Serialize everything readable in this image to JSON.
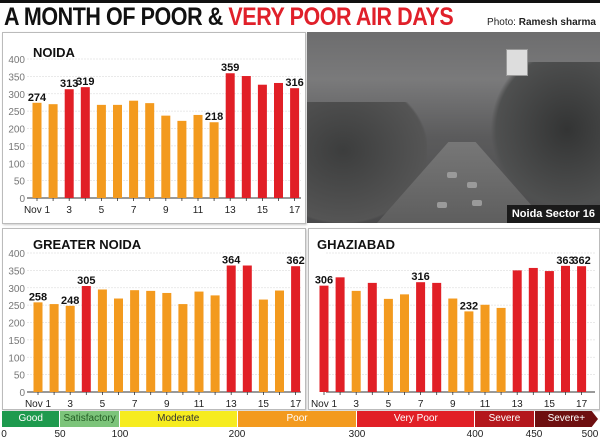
{
  "header": {
    "title_part1": "A MONTH OF POOR & ",
    "title_part2": "VERY POOR AIR DAYS",
    "credit_label": "Photo:",
    "credit_name": "Ramesh sharma"
  },
  "photo": {
    "caption": "Noida Sector 16"
  },
  "colors": {
    "poor": "#f39a1e",
    "very_poor": "#e11f26",
    "title_red": "#e0202a"
  },
  "chart_data": [
    {
      "type": "bar",
      "title": "NOIDA",
      "categories": [
        "Nov 1",
        "Nov 2",
        "Nov 3",
        "Nov 4",
        "Nov 5",
        "Nov 6",
        "Nov 7",
        "Nov 8",
        "Nov 9",
        "Nov 10",
        "Nov 11",
        "Nov 12",
        "Nov 13",
        "Nov 14",
        "Nov 15",
        "Nov 16",
        "Nov 17"
      ],
      "x_tick_labels": [
        "Nov 1",
        "3",
        "5",
        "7",
        "9",
        "11",
        "13",
        "15",
        "17"
      ],
      "values": [
        274,
        270,
        313,
        319,
        268,
        268,
        280,
        273,
        237,
        222,
        239,
        218,
        359,
        351,
        326,
        331,
        316
      ],
      "data_labels": {
        "0": "274",
        "2": "313",
        "3": "319",
        "11": "218",
        "12": "359",
        "16": "316"
      },
      "y_ticks": [
        "0",
        "50",
        "100",
        "150",
        "200",
        "250",
        "300",
        "350",
        "400"
      ],
      "ylim": [
        0,
        400
      ],
      "grid": true
    },
    {
      "type": "bar",
      "title": "GREATER NOIDA",
      "categories": [
        "Nov 1",
        "Nov 2",
        "Nov 3",
        "Nov 4",
        "Nov 5",
        "Nov 6",
        "Nov 7",
        "Nov 8",
        "Nov 9",
        "Nov 10",
        "Nov 11",
        "Nov 12",
        "Nov 13",
        "Nov 14",
        "Nov 15",
        "Nov 16",
        "Nov 17"
      ],
      "x_tick_labels": [
        "Nov 1",
        "3",
        "5",
        "7",
        "9",
        "11",
        "13",
        "15",
        "17"
      ],
      "values": [
        258,
        253,
        248,
        305,
        295,
        269,
        293,
        291,
        285,
        253,
        289,
        278,
        364,
        364,
        266,
        292,
        362
      ],
      "data_labels": {
        "0": "258",
        "2": "248",
        "3": "305",
        "12": "364",
        "16": "362"
      },
      "y_ticks": [
        "0",
        "50",
        "100",
        "150",
        "200",
        "250",
        "300",
        "350",
        "400"
      ],
      "ylim": [
        0,
        400
      ],
      "grid": true
    },
    {
      "type": "bar",
      "title": "GHAZIABAD",
      "categories": [
        "Nov 1",
        "Nov 2",
        "Nov 3",
        "Nov 4",
        "Nov 5",
        "Nov 6",
        "Nov 7",
        "Nov 8",
        "Nov 9",
        "Nov 10",
        "Nov 11",
        "Nov 12",
        "Nov 13",
        "Nov 14",
        "Nov 15",
        "Nov 16",
        "Nov 17"
      ],
      "x_tick_labels": [
        "Nov 1",
        "3",
        "5",
        "7",
        "9",
        "11",
        "13",
        "15",
        "17"
      ],
      "values": [
        306,
        330,
        291,
        314,
        268,
        281,
        316,
        314,
        269,
        232,
        251,
        242,
        350,
        357,
        348,
        363,
        362
      ],
      "data_labels": {
        "0": "306",
        "6": "316",
        "9": "232",
        "15": "363",
        "16": "362"
      },
      "y_ticks": [],
      "ylim": [
        0,
        400
      ],
      "grid": true
    }
  ],
  "aqi_scale": {
    "categories": [
      {
        "label": "Good",
        "color": "#1e9a4e"
      },
      {
        "label": "Satisfactory",
        "color": "#7cc47a"
      },
      {
        "label": "Moderate",
        "color": "#f6ec1f"
      },
      {
        "label": "Poor",
        "color": "#f39a1e"
      },
      {
        "label": "Very Poor",
        "color": "#e11f26"
      },
      {
        "label": "Severe",
        "color": "#b4171c"
      },
      {
        "label": "Severe+",
        "color": "#6e0f10"
      }
    ],
    "ticks": [
      "0",
      "50",
      "100",
      "200",
      "300",
      "400",
      "450",
      "500"
    ]
  }
}
